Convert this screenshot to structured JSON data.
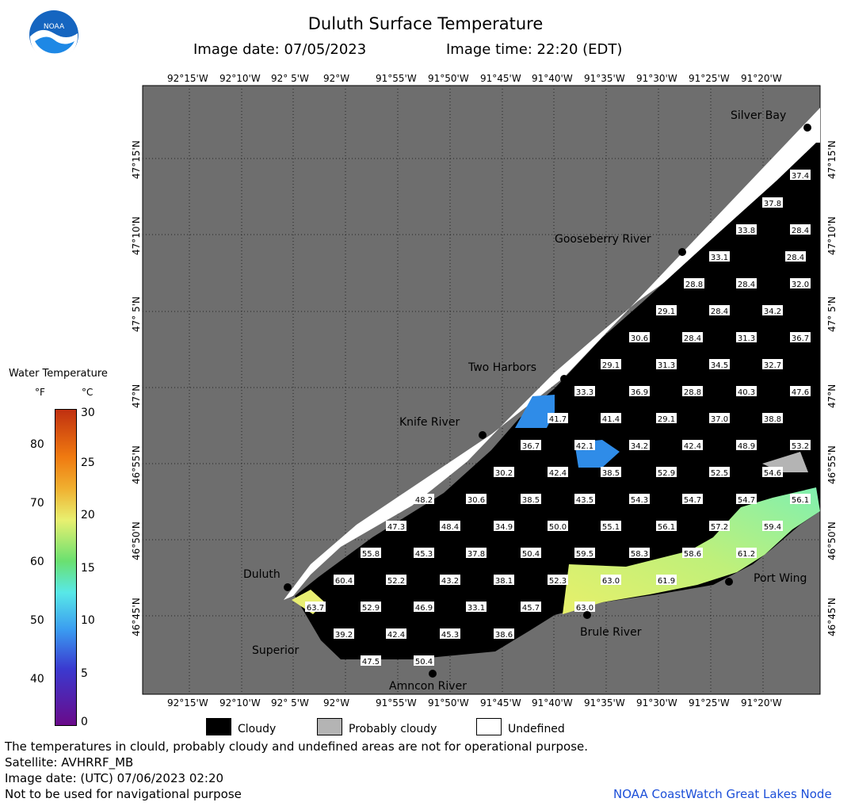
{
  "header": {
    "title": "Duluth Surface Temperature",
    "image_date": "Image date: 07/05/2023",
    "image_time": "Image time: 22:20 (EDT)",
    "logo_text": "NOAA"
  },
  "longitude_ticks": [
    "92°15'W",
    "92°10'W",
    "92° 5'W",
    "92°W",
    "91°55'W",
    "91°50'W",
    "91°45'W",
    "91°40'W",
    "91°35'W",
    "91°30'W",
    "91°25'W",
    "91°20'W"
  ],
  "latitude_ticks": [
    "47°15'N",
    "47°10'N",
    "47° 5'N",
    "47°N",
    "46°55'N",
    "46°50'N",
    "46°45'N"
  ],
  "places": [
    {
      "name": "Silver Bay"
    },
    {
      "name": "Gooseberry River"
    },
    {
      "name": "Two Harbors"
    },
    {
      "name": "Knife River"
    },
    {
      "name": "Duluth"
    },
    {
      "name": "Superior"
    },
    {
      "name": "Amncon River"
    },
    {
      "name": "Brule River"
    },
    {
      "name": "Port Wing"
    }
  ],
  "temperature_labels": [
    "37.4",
    "37.8",
    "33.8",
    "28.4",
    "33.1",
    "28.4",
    "28.8",
    "28.4",
    "32.0",
    "29.1",
    "28.4",
    "34.2",
    "30.6",
    "28.4",
    "31.3",
    "36.7",
    "29.1",
    "31.3",
    "34.5",
    "32.7",
    "33.3",
    "36.9",
    "28.8",
    "40.3",
    "47.6",
    "41.7",
    "41.4",
    "29.1",
    "37.0",
    "38.8",
    "36.7",
    "42.1",
    "34.2",
    "42.4",
    "48.9",
    "53.2",
    "30.2",
    "42.4",
    "38.5",
    "52.9",
    "52.5",
    "54.6",
    "48.2",
    "30.6",
    "38.5",
    "43.5",
    "54.3",
    "54.7",
    "54.7",
    "56.1",
    "47.3",
    "48.4",
    "34.9",
    "50.0",
    "55.1",
    "56.1",
    "57.2",
    "59.4",
    "55.8",
    "45.3",
    "37.8",
    "50.4",
    "59.5",
    "58.3",
    "58.6",
    "61.2",
    "60.4",
    "52.2",
    "43.2",
    "38.1",
    "52.3",
    "63.0",
    "61.9",
    "63.7",
    "52.9",
    "46.9",
    "33.1",
    "45.7",
    "63.0",
    "39.2",
    "42.4",
    "45.3",
    "38.6",
    "47.5",
    "50.4"
  ],
  "colorbar": {
    "title": "Water Temperature",
    "unit_f": "°F",
    "unit_c": "°C",
    "f_ticks": [
      "80",
      "70",
      "60",
      "50",
      "40"
    ],
    "c_ticks": [
      "30",
      "25",
      "20",
      "15",
      "10",
      "5",
      "0"
    ]
  },
  "legend": {
    "cloudy": "Cloudy",
    "probably_cloudy": "Probably cloudy",
    "undefined": "Undefined",
    "colors": {
      "cloudy": "#000000",
      "probably_cloudy": "#b4b4b4",
      "undefined": "#ffffff",
      "land": "#6e6e6e"
    }
  },
  "footer": {
    "disclaimer": "The temperatures in clould, probably cloudy and undefined areas are not for operational purpose.",
    "satellite": "Satellite: AVHRRF_MB",
    "utc_date": "Image date: (UTC) 07/06/2023  02:20",
    "nav_warning": "Not to be used for navigational purpose",
    "credit": "NOAA CoastWatch Great Lakes Node"
  }
}
